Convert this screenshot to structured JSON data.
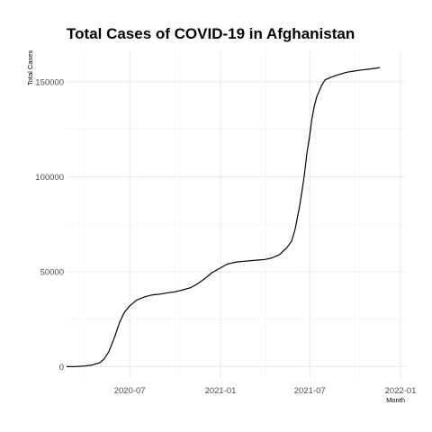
{
  "chart_data": {
    "type": "line",
    "title": "Total Cases of COVID-19 in Afghanistan",
    "xlabel": "Month",
    "ylabel": "Total Cases",
    "xlim": [
      "2020-02-24",
      "2022-01-10"
    ],
    "ylim": [
      -6000,
      166000
    ],
    "x_ticks": [
      "2020-07-01",
      "2021-01-01",
      "2021-07-01",
      "2022-01-01"
    ],
    "x_tick_labels": [
      "2020-07",
      "2021-01",
      "2021-07",
      "2022-01"
    ],
    "y_ticks": [
      0,
      50000,
      100000,
      150000
    ],
    "y_tick_labels": [
      "0",
      "50000",
      "100000",
      "150000"
    ],
    "grid": true,
    "legend": "none",
    "series": [
      {
        "name": "Total Cases",
        "x": [
          "2020-02-24",
          "2020-03-15",
          "2020-04-01",
          "2020-04-15",
          "2020-05-01",
          "2020-05-10",
          "2020-05-20",
          "2020-06-01",
          "2020-06-10",
          "2020-06-20",
          "2020-07-01",
          "2020-07-15",
          "2020-08-01",
          "2020-08-15",
          "2020-09-01",
          "2020-09-15",
          "2020-10-01",
          "2020-10-15",
          "2020-11-01",
          "2020-11-15",
          "2020-12-01",
          "2020-12-15",
          "2021-01-01",
          "2021-01-15",
          "2021-02-01",
          "2021-02-15",
          "2021-03-01",
          "2021-03-15",
          "2021-04-01",
          "2021-04-15",
          "2021-05-01",
          "2021-05-15",
          "2021-05-25",
          "2021-06-01",
          "2021-06-10",
          "2021-06-15",
          "2021-06-20",
          "2021-06-25",
          "2021-07-01",
          "2021-07-05",
          "2021-07-10",
          "2021-07-15",
          "2021-07-20",
          "2021-07-25",
          "2021-08-01",
          "2021-08-10",
          "2021-08-20",
          "2021-09-01",
          "2021-09-15",
          "2021-10-01",
          "2021-10-15",
          "2021-11-01",
          "2021-11-20"
        ],
        "values": [
          0,
          50,
          300,
          800,
          2000,
          4000,
          8000,
          16000,
          23000,
          28500,
          32000,
          35000,
          36800,
          37700,
          38200,
          38800,
          39400,
          40300,
          41500,
          43500,
          46500,
          49500,
          52000,
          54000,
          55000,
          55400,
          55700,
          56000,
          56400,
          57200,
          59000,
          62500,
          66000,
          72000,
          84000,
          92000,
          101000,
          112000,
          122000,
          130000,
          137000,
          142000,
          145000,
          148000,
          151000,
          152000,
          153000,
          154000,
          155000,
          155700,
          156200,
          156700,
          157400
        ]
      }
    ]
  }
}
